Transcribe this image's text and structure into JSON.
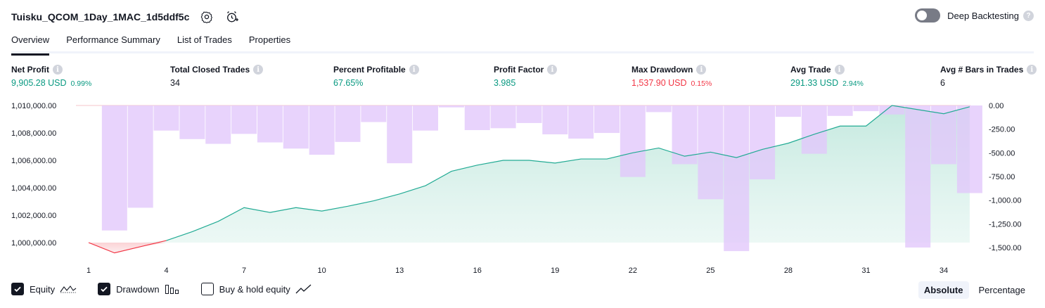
{
  "header": {
    "strategy_name": "Tuisku_QCOM_1Day_1MAC_1d5ddf5c",
    "icons": [
      "settings-icon",
      "add-alert-icon"
    ]
  },
  "deep_backtesting": {
    "label": "Deep Backtesting",
    "enabled": false,
    "help": "?"
  },
  "tabs": [
    {
      "label": "Overview",
      "active": true
    },
    {
      "label": "Performance Summary",
      "active": false
    },
    {
      "label": "List of Trades",
      "active": false
    },
    {
      "label": "Properties",
      "active": false
    }
  ],
  "stats": [
    {
      "label": "Net Profit",
      "value": "9,905.28 USD",
      "pct": "0.99%",
      "color": "green"
    },
    {
      "label": "Total Closed Trades",
      "value": "34",
      "pct": "",
      "color": "dark"
    },
    {
      "label": "Percent Profitable",
      "value": "67.65%",
      "pct": "",
      "color": "green"
    },
    {
      "label": "Profit Factor",
      "value": "3.985",
      "pct": "",
      "color": "green"
    },
    {
      "label": "Max Drawdown",
      "value": "1,537.90 USD",
      "pct": "0.15%",
      "color": "red"
    },
    {
      "label": "Avg Trade",
      "value": "291.33 USD",
      "pct": "2.94%",
      "color": "green"
    },
    {
      "label": "Avg # Bars in Trades",
      "value": "6",
      "pct": "",
      "color": "dark"
    }
  ],
  "chart_data": {
    "type": "area",
    "x_ticks": [
      "1",
      "4",
      "7",
      "10",
      "13",
      "16",
      "19",
      "22",
      "25",
      "28",
      "31",
      "34"
    ],
    "left_axis": {
      "ticks": [
        "1,010,000.00",
        "1,008,000.00",
        "1,006,000.00",
        "1,004,000.00",
        "1,002,000.00",
        "1,000,000.00"
      ],
      "ylim": [
        999000,
        1010000
      ]
    },
    "right_axis": {
      "ticks": [
        "0.00",
        "-250.00",
        "-500.00",
        "-750.00",
        "-1,000.00",
        "-1,250.00",
        "-1,500.00"
      ],
      "ylim": [
        -1537.9,
        0
      ]
    },
    "series": [
      {
        "name": "Equity",
        "x": [
          1,
          2,
          3,
          4,
          5,
          6,
          7,
          8,
          9,
          10,
          11,
          12,
          13,
          14,
          15,
          16,
          17,
          18,
          19,
          20,
          21,
          22,
          23,
          24,
          25,
          26,
          27,
          28,
          29,
          30,
          31,
          32,
          33,
          34,
          35
        ],
        "values": [
          1000000,
          999250,
          999700,
          1000150,
          1000800,
          1001550,
          1002550,
          1002200,
          1002550,
          1002300,
          1002650,
          1003050,
          1003550,
          1004150,
          1005200,
          1005650,
          1006000,
          1006000,
          1005800,
          1006100,
          1006100,
          1006550,
          1006900,
          1006300,
          1006600,
          1006200,
          1006800,
          1007250,
          1007900,
          1008500,
          1008500,
          1010000,
          1009700,
          1009400,
          1009905.28
        ]
      },
      {
        "name": "Drawdown",
        "x": [
          1,
          2,
          3,
          4,
          5,
          6,
          7,
          8,
          9,
          10,
          11,
          12,
          13,
          14,
          15,
          16,
          17,
          18,
          19,
          20,
          21,
          22,
          23,
          24,
          25,
          26,
          27,
          28,
          29,
          30,
          31,
          32,
          33,
          34,
          35
        ],
        "values": [
          0,
          -1320,
          -1080,
          -265,
          -355,
          -405,
          -300,
          -390,
          -455,
          -520,
          -385,
          -175,
          -610,
          -265,
          -20,
          -260,
          -240,
          -185,
          -305,
          -350,
          -290,
          -755,
          -70,
          -620,
          -990,
          -1537.9,
          -780,
          -120,
          -510,
          -110,
          -60,
          -95,
          -1500,
          -620,
          -925
        ]
      }
    ],
    "colors": {
      "equity_line": "#22ab94",
      "equity_negative": "#f23645",
      "equity_fill": "#dff3ee",
      "drawdown_bar": "#e2c7fb",
      "drawdown_overlap": "#b7b3ed"
    }
  },
  "legend": [
    {
      "label": "Equity",
      "checked": true,
      "icon": "equity-line-icon"
    },
    {
      "label": "Drawdown",
      "checked": true,
      "icon": "drawdown-bars-icon"
    },
    {
      "label": "Buy & hold equity",
      "checked": false,
      "icon": "buy-hold-line-icon"
    }
  ],
  "view_mode": {
    "options": [
      "Absolute",
      "Percentage"
    ],
    "selected": "Absolute"
  }
}
